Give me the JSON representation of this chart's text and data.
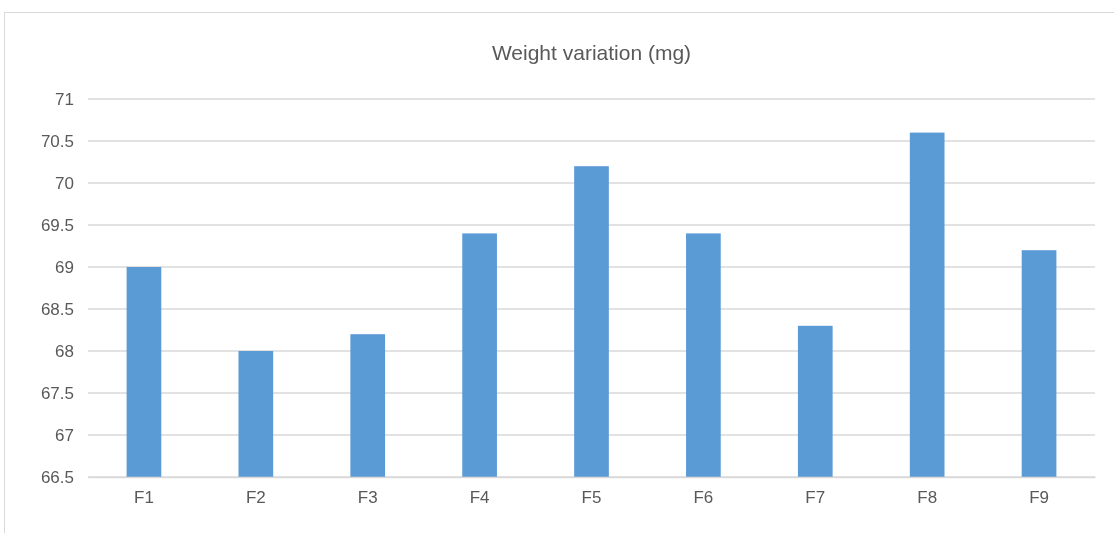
{
  "chart_data": {
    "type": "bar",
    "title": "Weight variation (mg)",
    "categories": [
      "F1",
      "F2",
      "F3",
      "F4",
      "F5",
      "F6",
      "F7",
      "F8",
      "F9"
    ],
    "values": [
      69,
      68,
      68.2,
      69.4,
      70.2,
      69.4,
      68.3,
      70.6,
      69.2
    ],
    "color": "#5b9bd5",
    "ylim": [
      66.5,
      71
    ],
    "yticks": [
      66.5,
      67,
      67.5,
      68,
      68.5,
      69,
      69.5,
      70,
      70.5,
      71
    ],
    "grid": true
  }
}
